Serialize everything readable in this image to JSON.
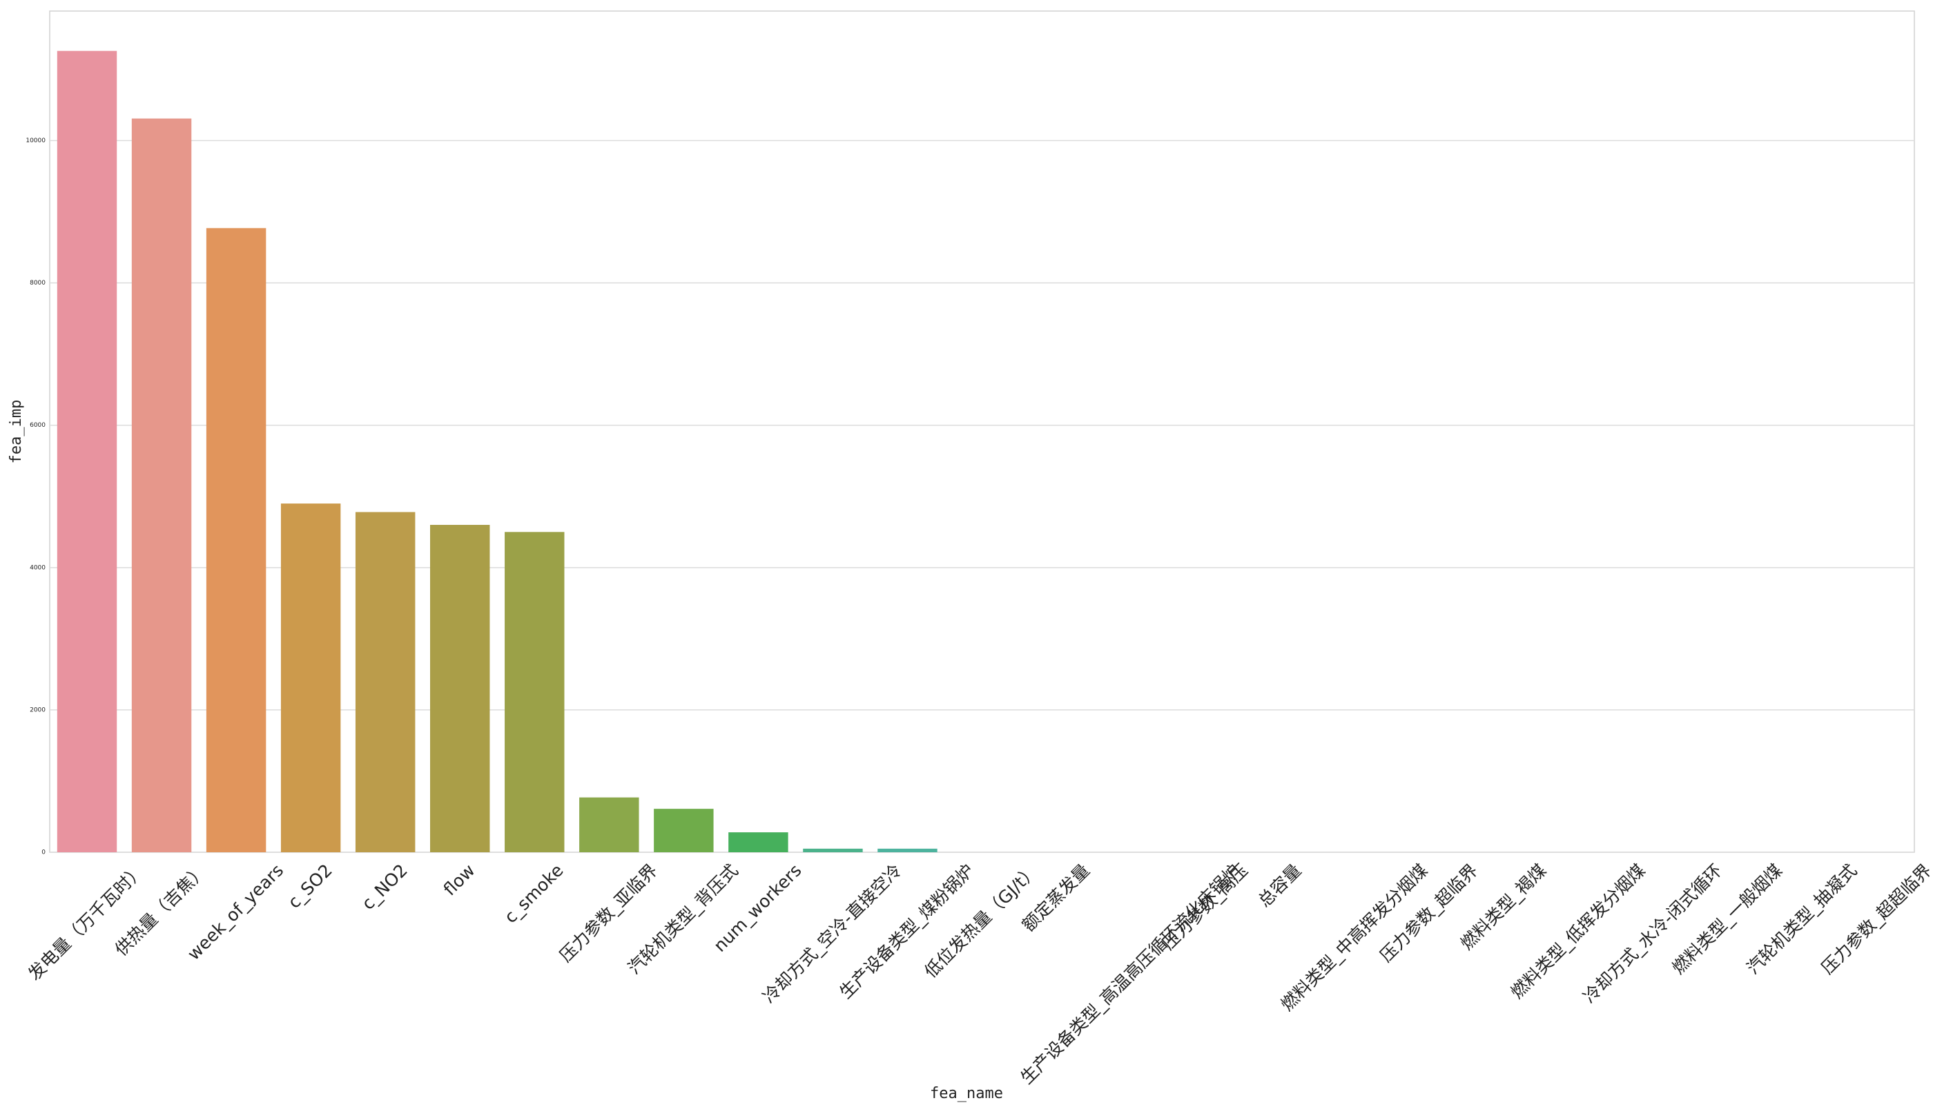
{
  "chart_data": {
    "type": "bar",
    "x_label": "fea_name",
    "y_label": "fea_imp",
    "categories": [
      "发电量（万千瓦时）",
      "供热量（吉焦）",
      "week_of_years",
      "c_SO2",
      "c_NO2",
      "flow",
      "c_smoke",
      "压力参数_亚临界",
      "汽轮机类型_背压式",
      "num_workers",
      "冷却方式_空冷-直接空冷",
      "生产设备类型_煤粉锅炉",
      "低位发热量（GJ/t）",
      "额定蒸发量",
      "生产设备类型_高温高压循环流化床锅炉",
      "压力参数_高压",
      "总容量",
      "燃料类型_中高挥发分烟煤",
      "压力参数_超临界",
      "燃料类型_褐煤",
      "燃料类型_低挥发分烟煤",
      "冷却方式_水冷-闭式循环",
      "燃料类型_一般烟煤",
      "汽轮机类型_抽凝式",
      "压力参数_超超临界"
    ],
    "values": [
      11260,
      10310,
      8770,
      4900,
      4780,
      4600,
      4500,
      770,
      610,
      280,
      50,
      50,
      0,
      0,
      0,
      0,
      0,
      0,
      0,
      0,
      0,
      0,
      0,
      0,
      0
    ],
    "colors": [
      "#e8939f",
      "#e6978b",
      "#e1955c",
      "#cc9a4c",
      "#bb9c4b",
      "#aa9e48",
      "#9ba148",
      "#8ba84a",
      "#6fac4a",
      "#46b05c",
      "#4bb28b",
      "#4db39e",
      "#4fb3ac",
      "#51b3b8",
      "#53b2c4",
      "#57b0d2",
      "#62acea",
      "#86a6f0",
      "#a59ef2",
      "#c294f2",
      "#d98bf0",
      "#e887e0",
      "#e98bcb",
      "#ea8fb9",
      "#e992ab"
    ],
    "ylim": [
      0,
      11820
    ],
    "yticks": [
      0,
      2000,
      4000,
      6000,
      8000,
      10000
    ],
    "grid": true
  }
}
